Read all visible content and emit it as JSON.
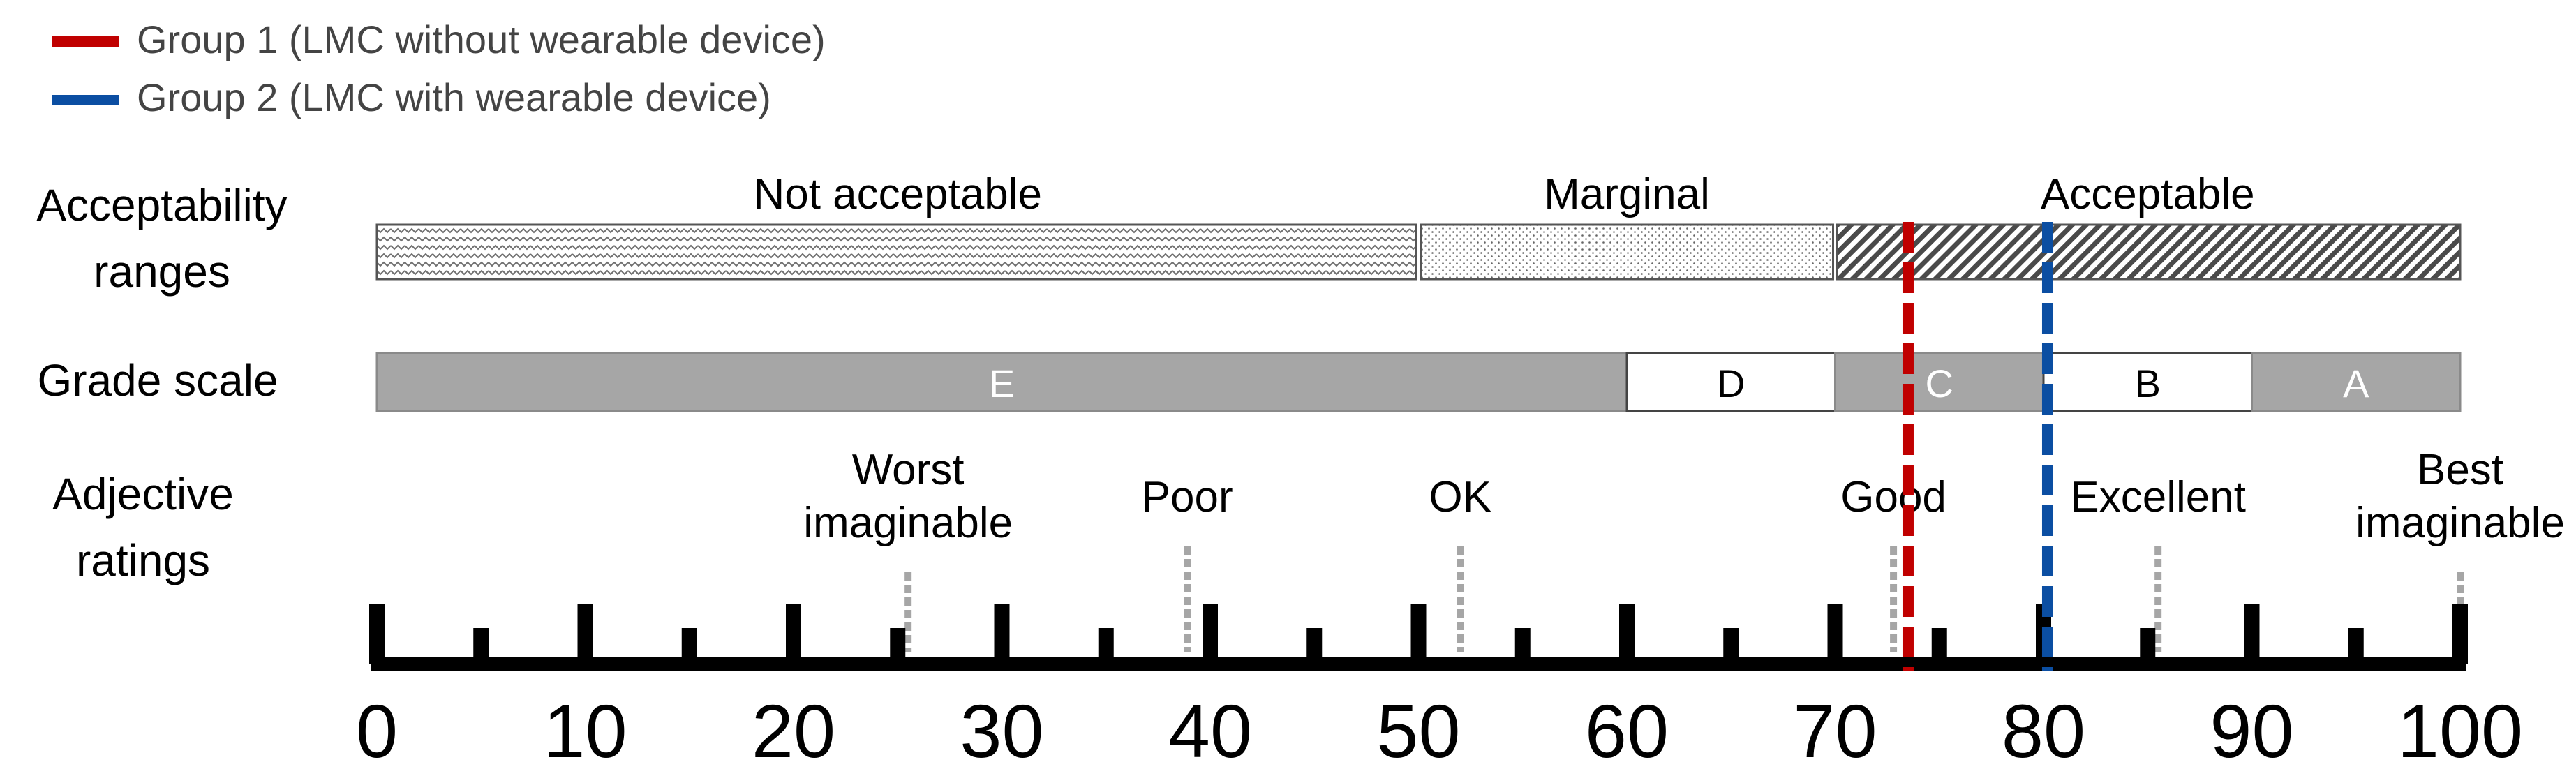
{
  "legend": [
    {
      "label": "Group 1 (LMC without wearable device)",
      "color": "#c00000"
    },
    {
      "label": "Group 2 (LMC with wearable device)",
      "color": "#0b4ea2"
    }
  ],
  "row_labels": {
    "acceptability": [
      "Acceptability",
      "ranges"
    ],
    "grade": [
      "Grade scale"
    ],
    "adjective": [
      "Adjective",
      "ratings"
    ]
  },
  "acceptability_ranges": [
    {
      "label": "Not acceptable",
      "from": 0,
      "to": 50,
      "pattern": "zigzag"
    },
    {
      "label": "Marginal",
      "from": 50,
      "to": 70,
      "pattern": "dots"
    },
    {
      "label": "Acceptable",
      "from": 70,
      "to": 100,
      "pattern": "hatch"
    }
  ],
  "grades": [
    {
      "label": "E",
      "from": 0,
      "to": 60,
      "fill": "#a6a6a6"
    },
    {
      "label": "D",
      "from": 60,
      "to": 70,
      "fill": "#ffffff"
    },
    {
      "label": "C",
      "from": 70,
      "to": 80,
      "fill": "#a6a6a6"
    },
    {
      "label": "B",
      "from": 80,
      "to": 90,
      "fill": "#ffffff"
    },
    {
      "label": "A",
      "from": 90,
      "to": 100,
      "fill": "#a6a6a6"
    }
  ],
  "adjectives": [
    {
      "lines": [
        "Worst",
        "imaginable"
      ],
      "value": 25.5
    },
    {
      "lines": [
        "Poor"
      ],
      "value": 38.9
    },
    {
      "lines": [
        "OK"
      ],
      "value": 52.0
    },
    {
      "lines": [
        "Good"
      ],
      "value": 72.8
    },
    {
      "lines": [
        "Excellent"
      ],
      "value": 85.5
    },
    {
      "lines": [
        "Best",
        "imaginable"
      ],
      "value": 100
    }
  ],
  "groups": [
    {
      "name": "Group 1 (LMC without wearable device)",
      "value": 73.5,
      "color": "#c00000"
    },
    {
      "name": "Group 2 (LMC with wearable device)",
      "value": 80.2,
      "color": "#0b4ea2"
    }
  ],
  "axis": {
    "min": 0,
    "max": 100,
    "major_ticks": [
      0,
      10,
      20,
      30,
      40,
      50,
      60,
      70,
      80,
      90,
      100
    ],
    "minor_ticks": [
      5,
      15,
      25,
      35,
      45,
      55,
      65,
      75,
      85,
      95
    ],
    "tick_labels": [
      "0",
      "10",
      "20",
      "30",
      "40",
      "50",
      "60",
      "70",
      "80",
      "90",
      "100"
    ]
  }
}
